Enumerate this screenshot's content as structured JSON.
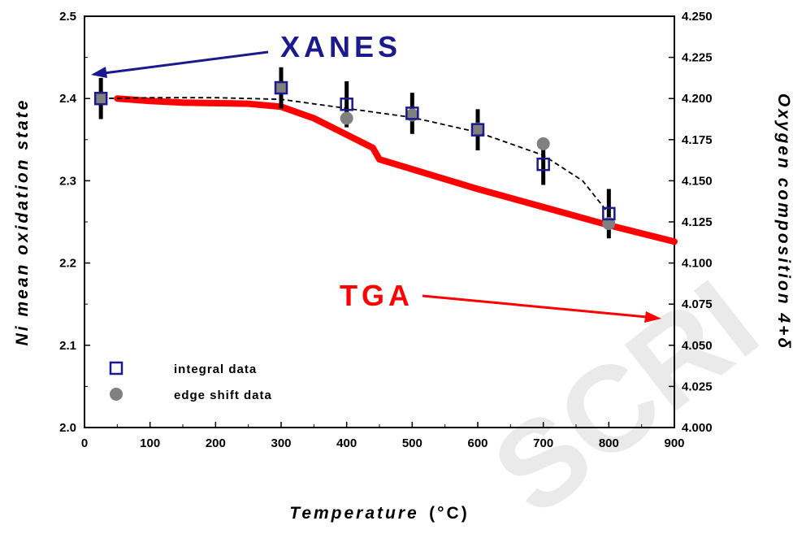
{
  "chart_data": {
    "type": "scatter",
    "xlabel": "Temperature",
    "xlabel_unit": "(°C)",
    "ylabel_left": "Ni mean oxidation state",
    "ylabel_right": "Oxygen composition   4+δ",
    "xlim": [
      0,
      900
    ],
    "ylim_left": [
      2.0,
      2.5
    ],
    "ylim_right": [
      4.0,
      4.25
    ],
    "x_ticks": [
      "0",
      "100",
      "200",
      "300",
      "400",
      "500",
      "600",
      "700",
      "800",
      "900"
    ],
    "y_left_ticks": [
      "2.0",
      "2.1",
      "2.2",
      "2.3",
      "2.4",
      "2.5"
    ],
    "y_right_ticks": [
      "4.000",
      "4.025",
      "4.050",
      "4.075",
      "4.100",
      "4.125",
      "4.150",
      "4.175",
      "4.200",
      "4.225",
      "4.250"
    ],
    "series": [
      {
        "name": "integral data",
        "marker": "open-square",
        "color": "#1a1a8c",
        "x": [
          25,
          300,
          400,
          500,
          600,
          700,
          800
        ],
        "y": [
          2.4,
          2.413,
          2.393,
          2.382,
          2.362,
          2.32,
          2.26
        ],
        "error": [
          0.025,
          0.025,
          0.028,
          0.025,
          0.025,
          0.025,
          0.03
        ]
      },
      {
        "name": "edge shift data",
        "marker": "filled-circle",
        "color": "#808080",
        "x": [
          25,
          300,
          400,
          500,
          600,
          700,
          800
        ],
        "y": [
          2.4,
          2.413,
          2.376,
          2.38,
          2.363,
          2.345,
          2.248
        ]
      },
      {
        "name": "XANES fit",
        "style": "dashed",
        "color": "#000000",
        "x": [
          25,
          100,
          200,
          300,
          400,
          500,
          600,
          700,
          760,
          800
        ],
        "y": [
          2.4,
          2.401,
          2.401,
          2.399,
          2.388,
          2.377,
          2.359,
          2.331,
          2.3,
          2.26
        ]
      },
      {
        "name": "TGA",
        "axis": "right",
        "style": "thick-line",
        "color": "#ff0000",
        "x": [
          50,
          100,
          150,
          200,
          250,
          300,
          350,
          400,
          430,
          440,
          450,
          500,
          600,
          700,
          800,
          900
        ],
        "y": [
          4.2,
          4.1985,
          4.1975,
          4.1972,
          4.1968,
          4.195,
          4.188,
          4.178,
          4.172,
          4.17,
          4.163,
          4.157,
          4.145,
          4.134,
          4.123,
          4.113
        ]
      }
    ],
    "annotations": [
      {
        "text": "XANES",
        "color": "#1a1a8c"
      },
      {
        "text": "TGA",
        "color": "#ff0000"
      }
    ],
    "legend": {
      "position": "bottom-left",
      "items": [
        "integral data",
        "edge shift data"
      ]
    },
    "grid": false
  },
  "watermark": "SCRI"
}
